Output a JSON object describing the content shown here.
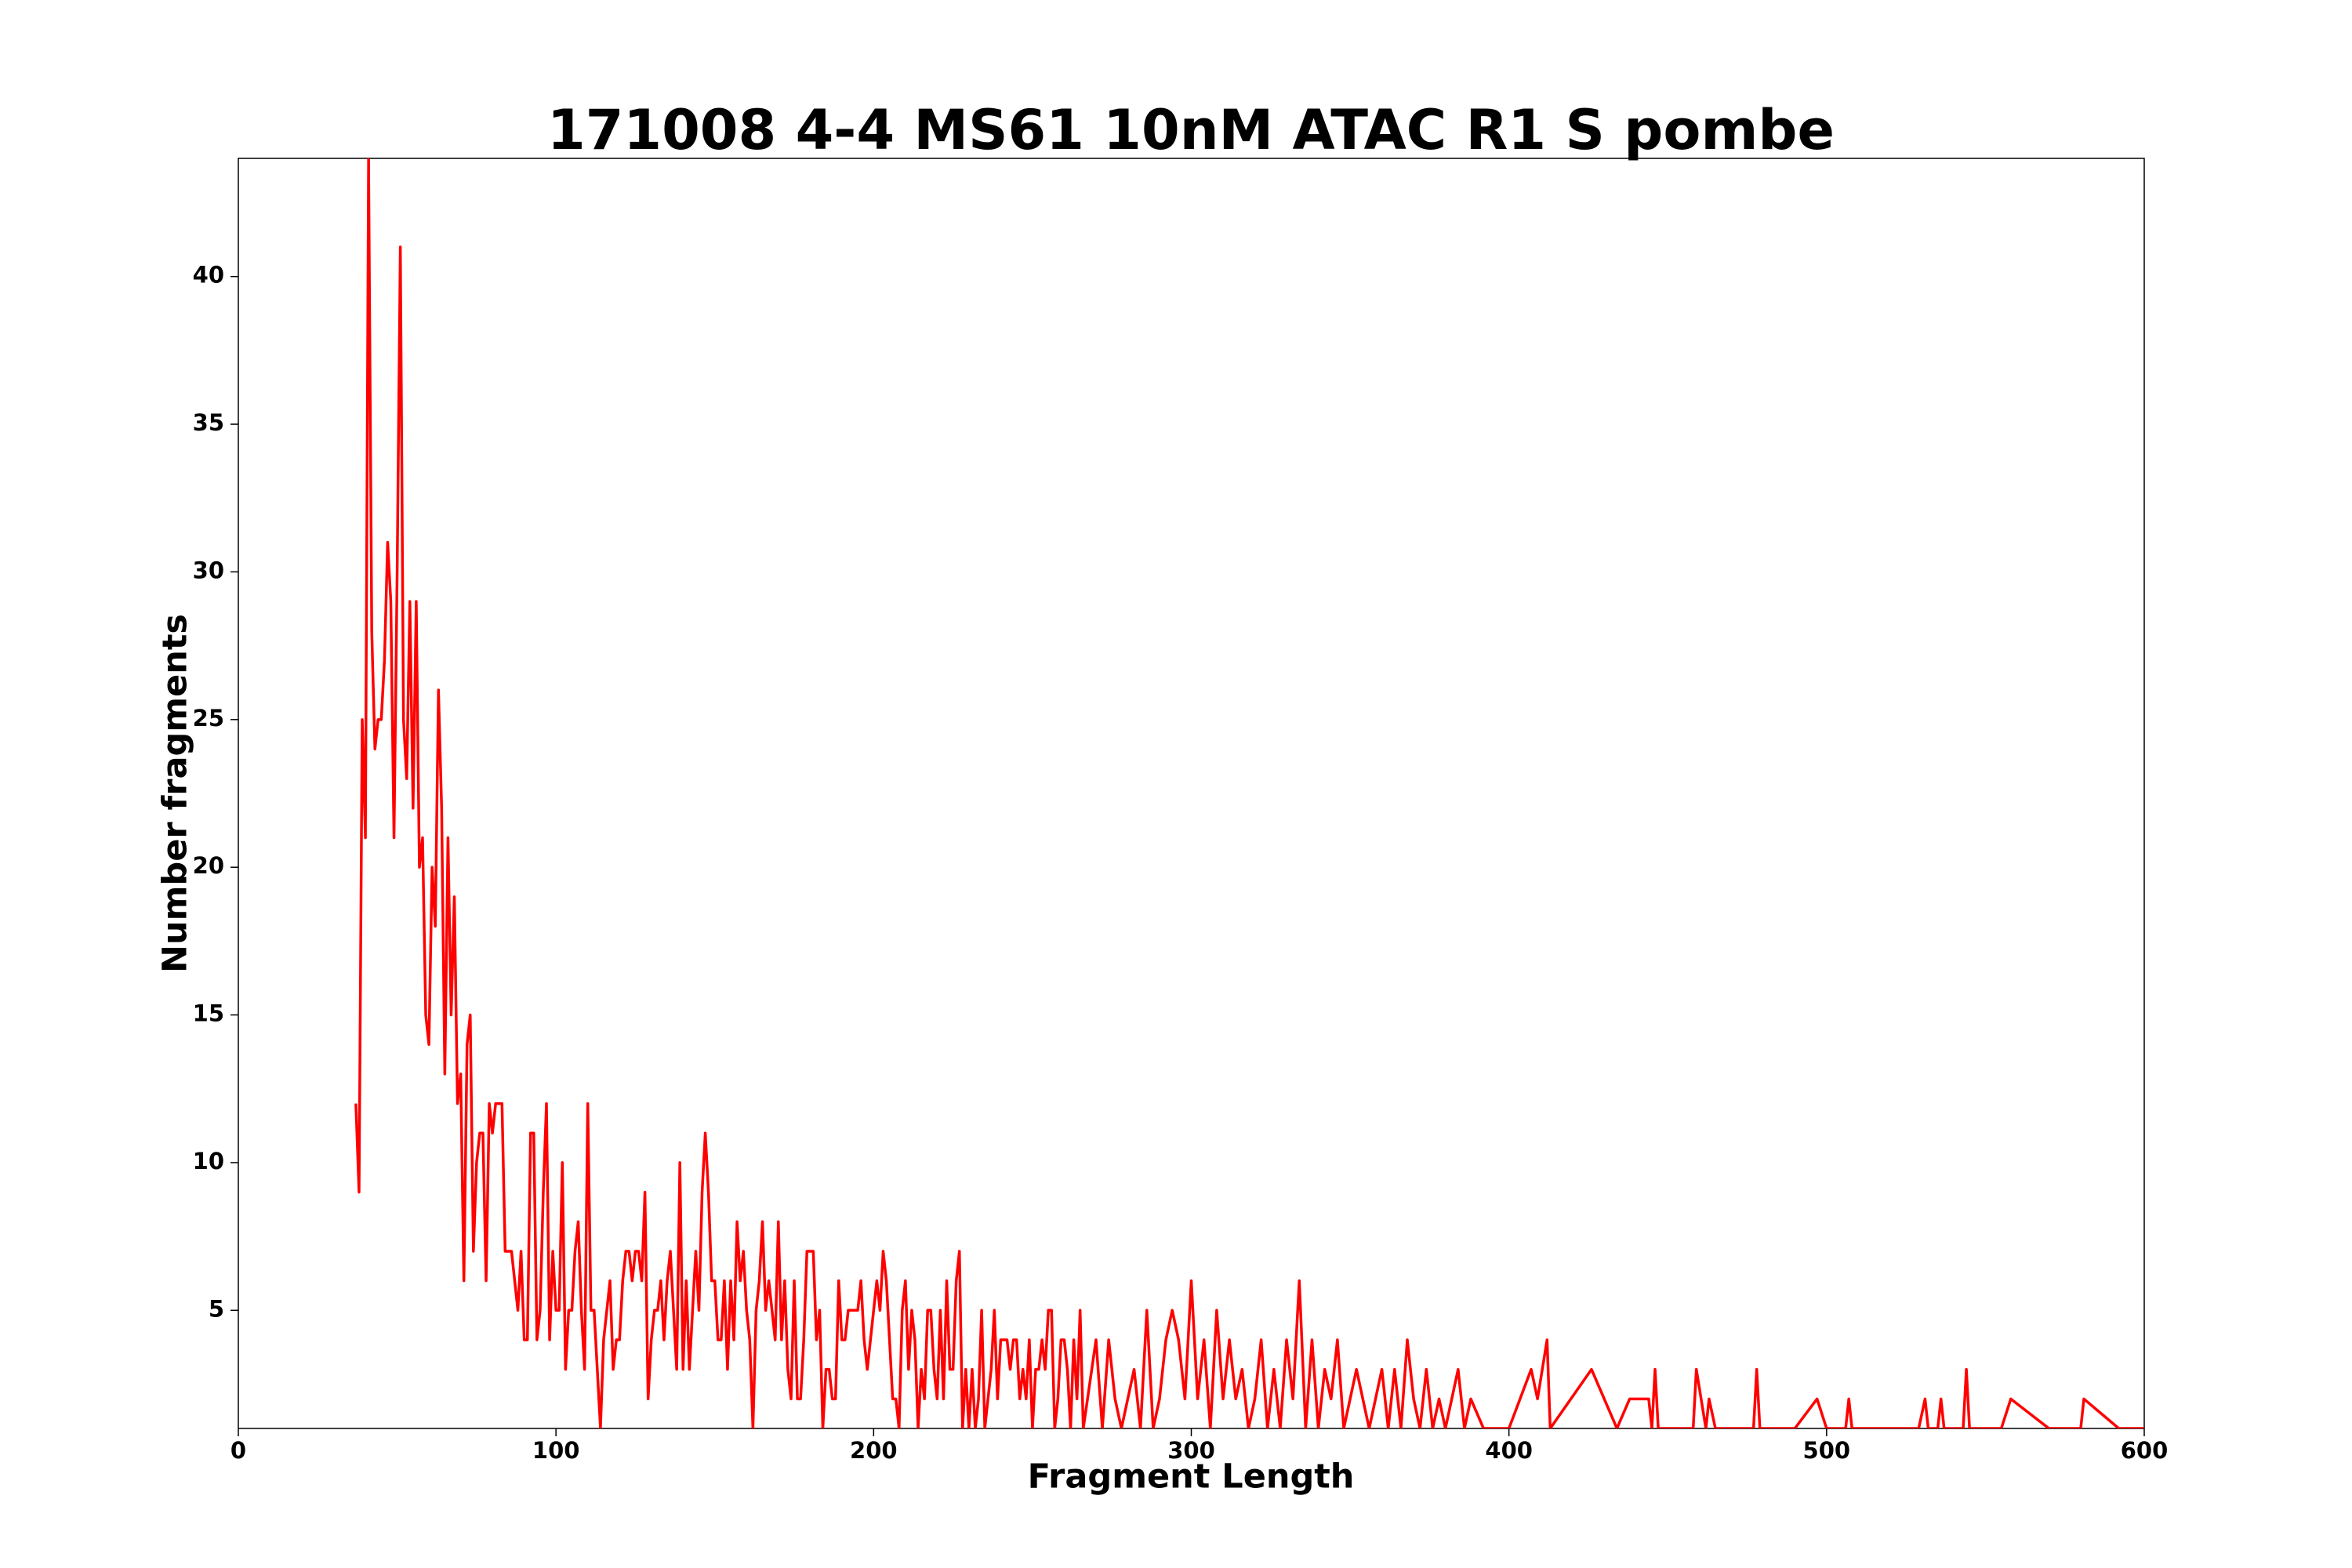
{
  "chart_data": {
    "type": "line",
    "title": "171008 4-4 MS61 10nM ATAC R1 S pombe",
    "x_label": "Fragment Length",
    "y_label": "Number fragments",
    "xlim": [
      0,
      600
    ],
    "xticks": [
      0,
      100,
      200,
      300,
      400,
      500,
      600
    ],
    "ylim": [
      1,
      44
    ],
    "yticks": [
      5,
      10,
      15,
      20,
      25,
      30,
      35,
      40
    ],
    "grid": false,
    "x": [
      37,
      38,
      39,
      40,
      41,
      42,
      43,
      44,
      45,
      46,
      47,
      48,
      49,
      50,
      51,
      52,
      53,
      54,
      55,
      56,
      57,
      58,
      59,
      60,
      61,
      62,
      63,
      64,
      65,
      66,
      67,
      68,
      69,
      70,
      71,
      72,
      73,
      74,
      75,
      76,
      77,
      78,
      79,
      80,
      81,
      82,
      83,
      84,
      85,
      86,
      87,
      88,
      89,
      90,
      91,
      92,
      93,
      94,
      95,
      96,
      97,
      98,
      99,
      100,
      101,
      102,
      103,
      104,
      105,
      106,
      107,
      108,
      109,
      110,
      111,
      112,
      113,
      114,
      115,
      116,
      117,
      118,
      119,
      120,
      121,
      122,
      123,
      124,
      125,
      126,
      127,
      128,
      129,
      130,
      131,
      132,
      133,
      134,
      135,
      136,
      137,
      138,
      139,
      140,
      141,
      142,
      143,
      144,
      145,
      146,
      147,
      148,
      149,
      150,
      151,
      152,
      153,
      154,
      155,
      156,
      157,
      158,
      159,
      160,
      161,
      162,
      163,
      164,
      165,
      166,
      167,
      168,
      169,
      170,
      171,
      172,
      173,
      174,
      175,
      176,
      177,
      178,
      179,
      180,
      181,
      182,
      183,
      184,
      185,
      186,
      187,
      188,
      189,
      190,
      191,
      192,
      193,
      194,
      195,
      196,
      197,
      198,
      199,
      200,
      201,
      202,
      203,
      204,
      205,
      206,
      207,
      208,
      209,
      210,
      211,
      212,
      213,
      214,
      215,
      216,
      217,
      218,
      219,
      220,
      221,
      222,
      223,
      224,
      225,
      226,
      227,
      228,
      229,
      230,
      231,
      232,
      233,
      234,
      235,
      236,
      237,
      238,
      239,
      240,
      241,
      242,
      243,
      244,
      245,
      246,
      247,
      248,
      249,
      250,
      251,
      252,
      253,
      254,
      255,
      256,
      257,
      258,
      259,
      260,
      261,
      262,
      263,
      264,
      265,
      266,
      270,
      272,
      274,
      276,
      278,
      280,
      282,
      284,
      286,
      288,
      290,
      292,
      294,
      296,
      298,
      300,
      302,
      304,
      306,
      308,
      310,
      312,
      314,
      316,
      318,
      320,
      322,
      324,
      326,
      328,
      330,
      332,
      334,
      336,
      338,
      340,
      342,
      344,
      346,
      348,
      350,
      352,
      354,
      356,
      358,
      360,
      362,
      364,
      366,
      368,
      370,
      372,
      374,
      376,
      378,
      380,
      384,
      386,
      388,
      392,
      400,
      407,
      409,
      412,
      413,
      426,
      434,
      438,
      444,
      445,
      446,
      447,
      458,
      459,
      462,
      463,
      465,
      477,
      478,
      479,
      490,
      497,
      500,
      506,
      507,
      508,
      529,
      531,
      532,
      535,
      536,
      537,
      543,
      544,
      545,
      555,
      558,
      570,
      580,
      581,
      592,
      600
    ],
    "series": [
      {
        "name": "fragments",
        "color": "#ff0000",
        "values": [
          12,
          9,
          25,
          21,
          44,
          28,
          24,
          25,
          25,
          27,
          31,
          29,
          21,
          30,
          41,
          25,
          23,
          29,
          22,
          29,
          20,
          21,
          15,
          14,
          20,
          18,
          26,
          22,
          13,
          21,
          15,
          19,
          12,
          13,
          6,
          14,
          15,
          7,
          10,
          11,
          11,
          6,
          12,
          11,
          12,
          12,
          12,
          7,
          7,
          7,
          6,
          5,
          7,
          4,
          4,
          11,
          11,
          4,
          5,
          9,
          12,
          4,
          7,
          5,
          5,
          10,
          3,
          5,
          5,
          7,
          8,
          5,
          3,
          12,
          5,
          5,
          3,
          1,
          4,
          5,
          6,
          3,
          4,
          4,
          6,
          7,
          7,
          6,
          7,
          7,
          6,
          9,
          2,
          4,
          5,
          5,
          6,
          4,
          6,
          7,
          5,
          3,
          10,
          3,
          6,
          3,
          5,
          7,
          5,
          9,
          11,
          9,
          6,
          6,
          4,
          4,
          6,
          3,
          6,
          4,
          8,
          6,
          7,
          5,
          4,
          1,
          5,
          6,
          8,
          5,
          6,
          5,
          4,
          8,
          4,
          6,
          3,
          2,
          6,
          2,
          2,
          4,
          7,
          7,
          7,
          4,
          5,
          1,
          3,
          3,
          2,
          2,
          6,
          4,
          4,
          5,
          5,
          5,
          5,
          6,
          4,
          3,
          4,
          5,
          6,
          5,
          7,
          6,
          4,
          2,
          2,
          1,
          5,
          6,
          3,
          5,
          4,
          1,
          3,
          2,
          5,
          5,
          3,
          2,
          5,
          2,
          6,
          3,
          3,
          6,
          7,
          1,
          3,
          1,
          3,
          1,
          2,
          5,
          1,
          2,
          3,
          5,
          2,
          4,
          4,
          4,
          3,
          4,
          4,
          2,
          3,
          2,
          4,
          1,
          3,
          3,
          4,
          3,
          5,
          5,
          1,
          2,
          4,
          4,
          3,
          1,
          4,
          2,
          5,
          1,
          4,
          1,
          4,
          2,
          1,
          2,
          3,
          1,
          5,
          1,
          2,
          4,
          5,
          4,
          2,
          6,
          2,
          4,
          1,
          5,
          2,
          4,
          2,
          3,
          1,
          2,
          4,
          1,
          3,
          1,
          4,
          2,
          6,
          1,
          4,
          1,
          3,
          2,
          4,
          1,
          2,
          3,
          2,
          1,
          2,
          3,
          1,
          3,
          1,
          4,
          2,
          1,
          3,
          1,
          2,
          1,
          3,
          1,
          2,
          1,
          1,
          3,
          2,
          4,
          1,
          3,
          1,
          2,
          2,
          1,
          3,
          1,
          1,
          3,
          1,
          2,
          1,
          1,
          3,
          1,
          1,
          2,
          1,
          1,
          2,
          1,
          1,
          2,
          1,
          1,
          2,
          1,
          1,
          3,
          1,
          1,
          2,
          1,
          1,
          2,
          1,
          1
        ]
      }
    ]
  }
}
